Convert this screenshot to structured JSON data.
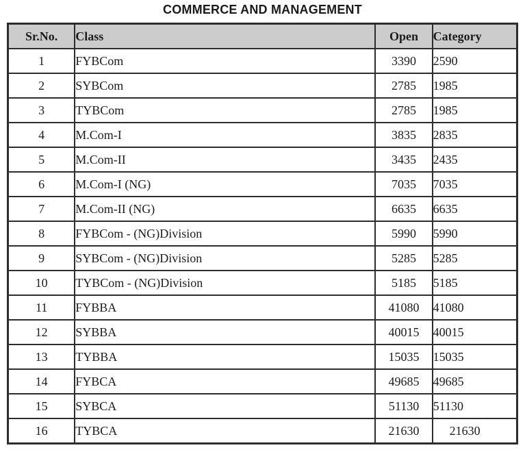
{
  "title": "COMMERCE AND MANAGEMENT",
  "colors": {
    "header_bg": "#cccccc",
    "border": "#2d2d2d",
    "text": "#1c1c1c",
    "page_bg": "#ffffff"
  },
  "table": {
    "columns": [
      {
        "key": "sr",
        "label": "Sr.No."
      },
      {
        "key": "class",
        "label": "Class"
      },
      {
        "key": "open",
        "label": "Open"
      },
      {
        "key": "category",
        "label": "Category"
      }
    ],
    "rows": [
      {
        "sr": "1",
        "class": "FYBCom",
        "open": "3390",
        "category": "2590"
      },
      {
        "sr": "2",
        "class": "SYBCom",
        "open": "2785",
        "category": "1985"
      },
      {
        "sr": "3",
        "class": "TYBCom",
        "open": "2785",
        "category": "1985"
      },
      {
        "sr": "4",
        "class": "M.Com-I",
        "open": "3835",
        "category": "2835"
      },
      {
        "sr": "5",
        "class": "M.Com-II",
        "open": "3435",
        "category": "2435"
      },
      {
        "sr": "6",
        "class": "M.Com-I (NG)",
        "open": "7035",
        "category": "7035"
      },
      {
        "sr": "7",
        "class": "M.Com-II (NG)",
        "open": "6635",
        "category": "6635"
      },
      {
        "sr": "8",
        "class": "FYBCom - (NG)Division",
        "open": "5990",
        "category": "5990"
      },
      {
        "sr": "9",
        "class": "SYBCom - (NG)Division",
        "open": "5285",
        "category": "5285"
      },
      {
        "sr": "10",
        "class": "TYBCom - (NG)Division",
        "open": "5185",
        "category": "5185"
      },
      {
        "sr": "11",
        "class": "FYBBA",
        "open": "41080",
        "category": "41080"
      },
      {
        "sr": "12",
        "class": "SYBBA",
        "open": "40015",
        "category": "40015"
      },
      {
        "sr": "13",
        "class": "TYBBA",
        "open": "15035",
        "category": "15035"
      },
      {
        "sr": "14",
        "class": "FYBCA",
        "open": "49685",
        "category": "49685"
      },
      {
        "sr": "15",
        "class": "SYBCA",
        "open": "51130",
        "category": "51130"
      },
      {
        "sr": "16",
        "class": "TYBCA",
        "open": "21630",
        "category": "21630"
      }
    ]
  }
}
